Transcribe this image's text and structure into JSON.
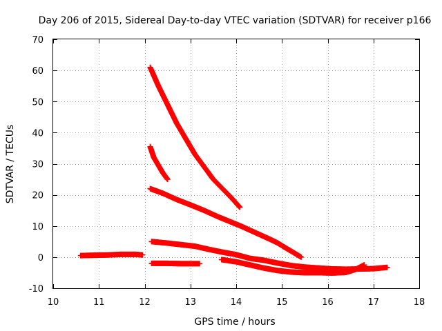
{
  "chart_data": {
    "type": "scatter",
    "title": "Day 206 of 2015, Sidereal Day-to-day VTEC variation (SDTVAR) for receiver p166",
    "xlabel": "GPS time / hours",
    "ylabel": "SDTVAR / TECUs",
    "xlim": [
      10,
      18
    ],
    "ylim": [
      -10,
      70
    ],
    "xticks": [
      "10",
      "11",
      "12",
      "13",
      "14",
      "15",
      "16",
      "17",
      "18"
    ],
    "yticks": [
      "-10",
      "0",
      "10",
      "20",
      "30",
      "40",
      "50",
      "60",
      "70"
    ],
    "grid": true,
    "marker": "plus",
    "color": "#ff0000",
    "series": [
      {
        "x": [
          12.12,
          12.3,
          12.5,
          12.7,
          12.9,
          13.1,
          13.3,
          13.5,
          13.7,
          13.9,
          14.08
        ],
        "y": [
          61,
          55,
          49,
          43,
          38,
          33,
          29,
          25,
          22,
          19,
          16
        ]
      },
      {
        "x": [
          12.12,
          12.2,
          12.3,
          12.4,
          12.5
        ],
        "y": [
          35.5,
          32,
          29.5,
          27,
          25
        ]
      },
      {
        "x": [
          12.12,
          12.4,
          12.7,
          13.0,
          13.3,
          13.6,
          13.9,
          14.1,
          14.4,
          14.7,
          14.9,
          15.1,
          15.25,
          15.42
        ],
        "y": [
          22,
          20.5,
          18.5,
          16.8,
          15,
          13,
          11.2,
          10,
          8,
          6,
          4.6,
          2.8,
          1.5,
          0
        ]
      },
      {
        "x": [
          12.15,
          12.5,
          12.8,
          13.1,
          13.4,
          13.7,
          14.0,
          14.3,
          14.6,
          14.9,
          15.2,
          15.5,
          15.8,
          16.1,
          16.4,
          16.7,
          17.0,
          17.3
        ],
        "y": [
          5,
          4.5,
          4,
          3.5,
          2.5,
          1.6,
          0.8,
          -0.4,
          -1,
          -1.9,
          -2.7,
          -3.2,
          -3.5,
          -3.8,
          -3.9,
          -3.8,
          -3.7,
          -3.3
        ]
      },
      {
        "x": [
          12.15,
          12.5,
          12.8,
          13.2
        ],
        "y": [
          -2,
          -2,
          -2.1,
          -2.1
        ]
      },
      {
        "x": [
          13.68,
          14.0,
          14.3,
          14.6,
          14.9,
          15.2,
          15.5,
          15.8,
          16.1,
          16.4,
          16.6,
          16.8
        ],
        "y": [
          -0.8,
          -1.5,
          -2.5,
          -3.5,
          -4.3,
          -4.8,
          -5,
          -5,
          -5.1,
          -4.9,
          -4,
          -2.5
        ]
      },
      {
        "x": [
          10.6,
          10.9,
          11.2,
          11.5,
          11.8,
          11.95
        ],
        "y": [
          0.5,
          0.6,
          0.7,
          0.9,
          0.9,
          0.7
        ]
      }
    ]
  }
}
